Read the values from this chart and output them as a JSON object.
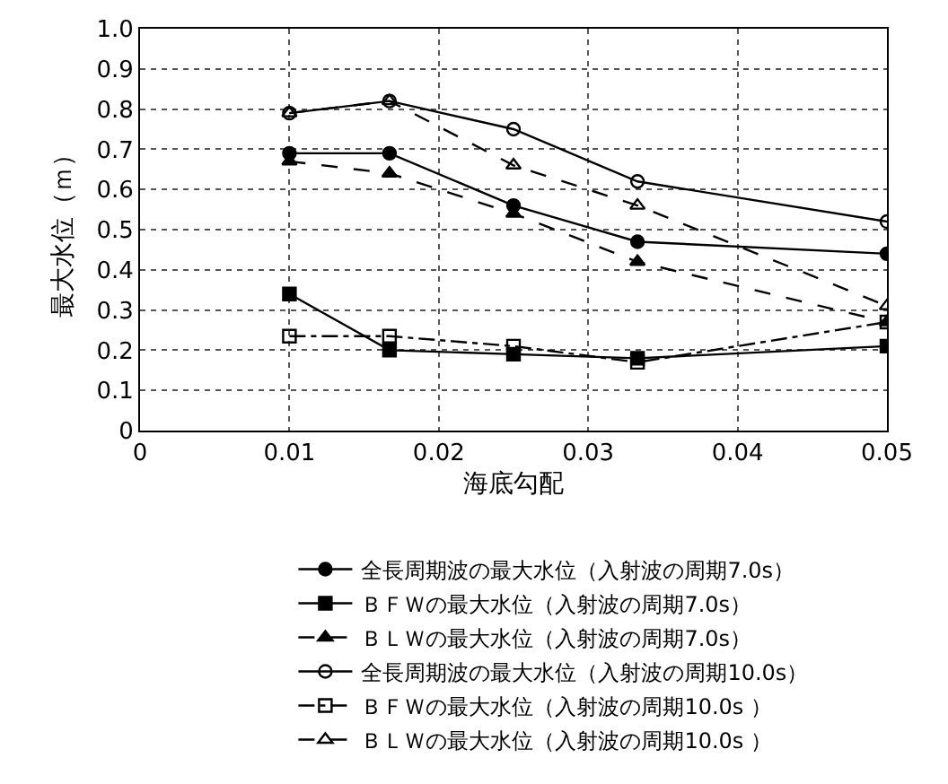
{
  "chart_data": {
    "type": "line",
    "xlabel": "海底勾配",
    "ylabel": "最大水位（ｍ）",
    "x": [
      0.01,
      0.0167,
      0.025,
      0.0333,
      0.05
    ],
    "series": [
      {
        "name": "全長周期波の最大水位（入射波の周期7.0s）",
        "color": "#000000",
        "marker": "circle",
        "line_style": "solid",
        "values": [
          0.69,
          0.69,
          0.56,
          0.47,
          0.44
        ]
      },
      {
        "name": "ＢＦＷの最大水位（入射波の周期7.0s）",
        "color": "#000000",
        "marker": "square",
        "line_style": "solid",
        "values": [
          0.34,
          0.2,
          0.19,
          0.18,
          0.21
        ]
      },
      {
        "name": "ＢＬＷの最大水位（入射波の周期7.0s）",
        "color": "#000000",
        "marker": "triangle",
        "line_style": "dashed",
        "values": [
          0.67,
          0.64,
          0.54,
          0.42,
          0.27
        ]
      },
      {
        "name": "全長周期波の最大水位（入射波の周期10.0s）",
        "color": "#000000",
        "marker": "circle-open",
        "line_style": "solid",
        "values": [
          0.79,
          0.82,
          0.75,
          0.62,
          0.52
        ]
      },
      {
        "name": "ＢＦＷの最大水位（入射波の周期10.0s ）",
        "color": "#000000",
        "marker": "square-open",
        "line_style": "dashdot",
        "values": [
          0.235,
          0.235,
          0.21,
          0.17,
          0.27
        ]
      },
      {
        "name": "ＢＬＷの最大水位（入射波の周期10.0s ）",
        "color": "#000000",
        "marker": "triangle-open",
        "line_style": "dashed",
        "values": [
          0.79,
          0.82,
          0.66,
          0.56,
          0.31
        ]
      }
    ],
    "xlim": [
      0,
      0.05
    ],
    "xticks": [
      0,
      0.01,
      0.02,
      0.03,
      0.04,
      0.05
    ],
    "ylim": [
      0,
      1.0
    ],
    "yticks": [
      0,
      0.1,
      0.2,
      0.3,
      0.4,
      0.5,
      0.6,
      0.7,
      0.8,
      0.9,
      {
        "value": 1.0,
        "label": "1.0"
      }
    ],
    "grid": true,
    "legend": "bottom"
  }
}
